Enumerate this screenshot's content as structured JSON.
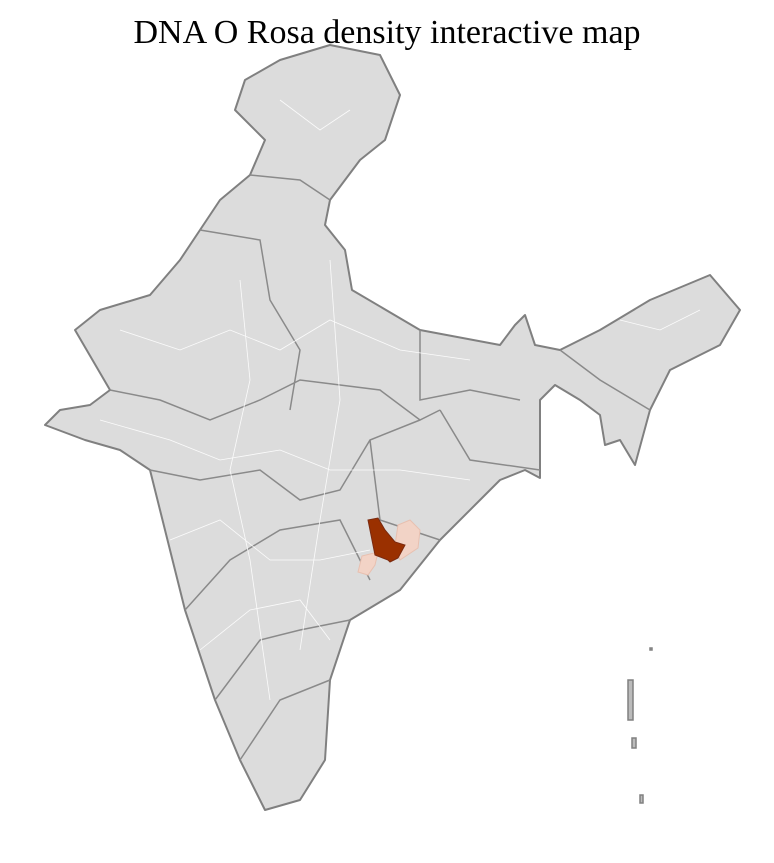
{
  "title": "DNA O Rosa density interactive map",
  "map": {
    "region": "India districts",
    "base_fill": "#dcdcdc",
    "border_color": "#808080",
    "district_line_color": "#ffffff",
    "highlight": [
      {
        "level": "high",
        "color": "#9a3000"
      },
      {
        "level": "low",
        "color": "#f2d3c6"
      }
    ]
  }
}
